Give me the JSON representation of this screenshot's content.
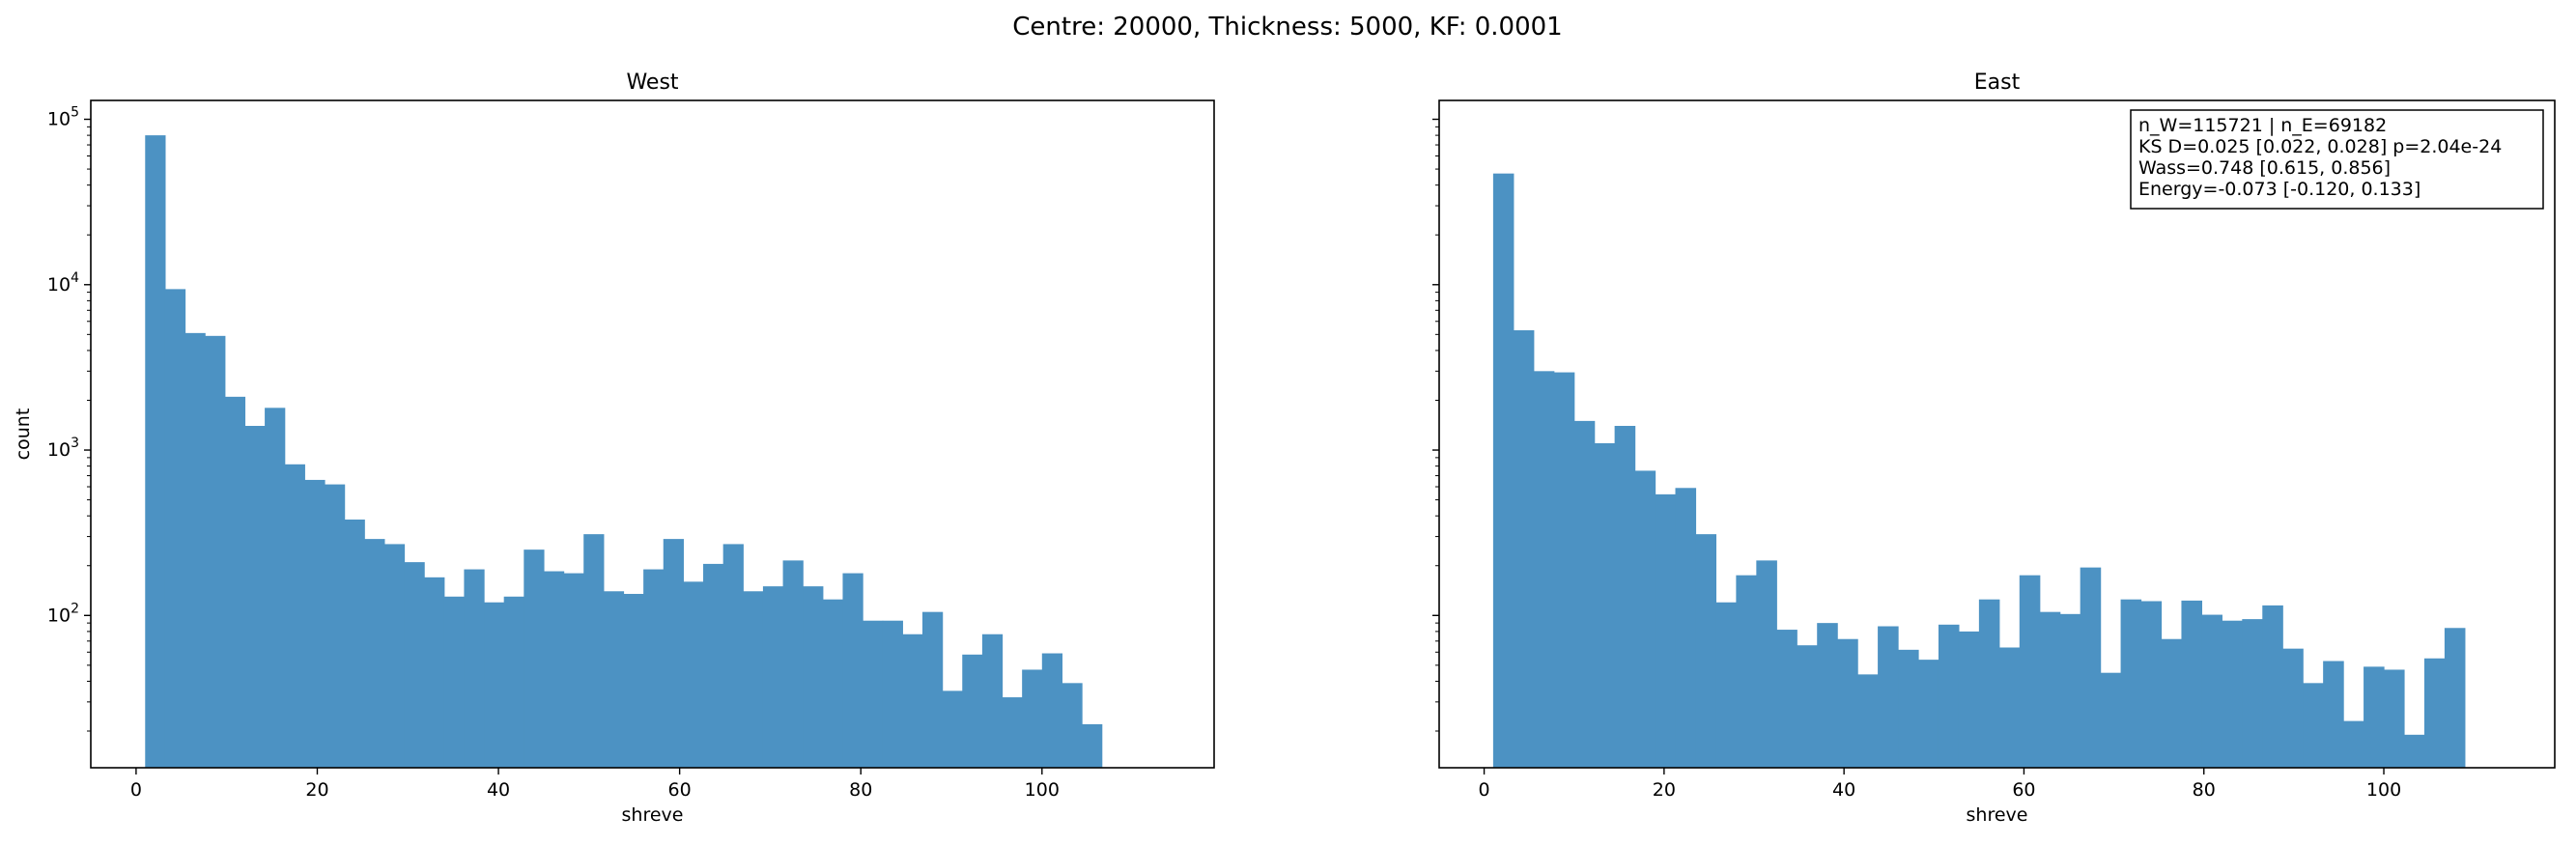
{
  "figure": {
    "suptitle": "Centre: 20000, Thickness: 5000, KF: 0.0001"
  },
  "chart_data": [
    {
      "type": "bar",
      "subtype": "histogram",
      "title": "West",
      "xlabel": "shreve",
      "ylabel": "count",
      "yscale": "log",
      "xlim": [
        -5,
        119
      ],
      "ylim": [
        12,
        130000
      ],
      "x_ticks": [
        0,
        20,
        40,
        60,
        80,
        100
      ],
      "y_ticks": [
        {
          "value": 100,
          "base": "10",
          "exp": "2"
        },
        {
          "value": 1000,
          "base": "10",
          "exp": "3"
        },
        {
          "value": 10000,
          "base": "10",
          "exp": "4"
        },
        {
          "value": 100000,
          "base": "10",
          "exp": "5"
        }
      ],
      "bin_start": 1,
      "bin_width": 2.2,
      "values": [
        80000,
        9400,
        5100,
        4900,
        2100,
        1400,
        1800,
        820,
        660,
        620,
        380,
        290,
        270,
        210,
        170,
        130,
        190,
        120,
        130,
        250,
        185,
        180,
        310,
        140,
        135,
        190,
        290,
        160,
        205,
        270,
        140,
        150,
        215,
        150,
        125,
        180,
        93,
        93,
        77,
        105,
        35,
        58,
        77,
        32,
        47,
        59,
        39,
        22
      ],
      "color": "#4c92c3"
    },
    {
      "type": "bar",
      "subtype": "histogram",
      "title": "East",
      "xlabel": "shreve",
      "ylabel": "",
      "yscale": "log",
      "xlim": [
        -5,
        119
      ],
      "ylim": [
        12,
        130000
      ],
      "x_ticks": [
        0,
        20,
        40,
        60,
        80,
        100
      ],
      "bin_start": 1,
      "bin_width": 2.25,
      "values": [
        47000,
        5300,
        3000,
        2950,
        1500,
        1100,
        1400,
        750,
        540,
        590,
        310,
        120,
        175,
        215,
        82,
        66,
        90,
        72,
        44,
        86,
        62,
        54,
        88,
        80,
        125,
        64,
        175,
        105,
        102,
        195,
        45,
        125,
        122,
        72,
        123,
        101,
        93,
        95,
        115,
        63,
        39,
        53,
        23,
        49,
        47,
        19,
        55,
        84
      ],
      "color": "#4c92c3",
      "stats_box": [
        "n_W=115721 | n_E=69182",
        "KS D=0.025 [0.022, 0.028]  p=2.04e-24",
        "Wass=0.748 [0.615, 0.856]",
        "Energy=-0.073 [-0.120, 0.133]"
      ]
    }
  ]
}
